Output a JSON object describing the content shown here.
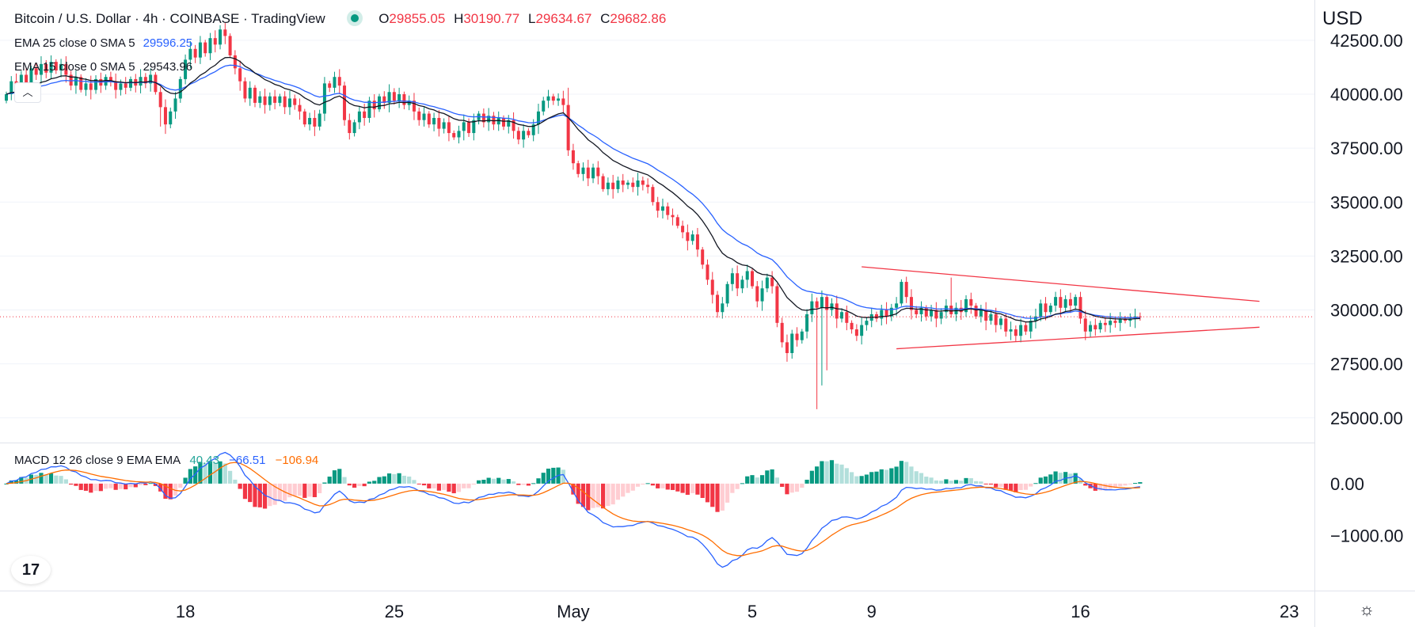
{
  "header": {
    "title": "Bitcoin / U.S. Dollar · 4h · COINBASE · TradingView",
    "o_key": "O",
    "o_val": "29855.05",
    "h_key": "H",
    "h_val": "30190.77",
    "l_key": "L",
    "l_val": "29634.67",
    "c_key": "C",
    "c_val": "29682.86"
  },
  "studies": {
    "ema25_label": "EMA 25 close 0 SMA 5",
    "ema25_value": "29596.25",
    "ema15_label": "EMA 15 close 0 SMA 5",
    "ema15_value": "29543.96"
  },
  "macd_legend": {
    "label": "MACD 12 26 close 9 EMA EMA",
    "hist": "40.43",
    "macd": "−66.51",
    "signal": "−106.94"
  },
  "currency": "USD",
  "logo_text": "17",
  "colors": {
    "up": "#089981",
    "down": "#f23645",
    "up_light": "#b2dfdb",
    "down_light": "#ffcdd2",
    "ema25": "#2962ff",
    "ema15": "#131722",
    "macd": "#2962ff",
    "signal": "#ff6d00",
    "trend": "#f23645"
  },
  "chart_data": [
    {
      "type": "candlestick",
      "title": "Bitcoin / U.S. Dollar · 4h · COINBASE",
      "ylabel": "USD",
      "ylim": [
        24000,
        44000
      ],
      "y_ticks": [
        25000,
        27500,
        30000,
        32500,
        35000,
        37500,
        40000,
        42500
      ],
      "y_tick_labels": [
        "25000.00",
        "27500.00",
        "30000.00",
        "32500.00",
        "35000.00",
        "37500.00",
        "40000.00",
        "42500.00"
      ],
      "x_ticks": [
        "18",
        "25",
        "May",
        "5",
        "9",
        "16",
        "23"
      ],
      "x_tick_bars": [
        36,
        78,
        114,
        150,
        174,
        216,
        258
      ],
      "close": [
        40000,
        40600,
        40300,
        40900,
        40500,
        41200,
        40900,
        41400,
        41000,
        41500,
        41100,
        41400,
        40900,
        40400,
        40800,
        40200,
        40500,
        40200,
        40700,
        40400,
        40800,
        40600,
        40200,
        40500,
        40300,
        40700,
        40400,
        40800,
        40500,
        40900,
        40100,
        39400,
        38600,
        39200,
        39800,
        40700,
        41600,
        42100,
        41700,
        42400,
        41900,
        42600,
        42300,
        43000,
        42700,
        41800,
        41200,
        40600,
        39800,
        40300,
        39600,
        39900,
        39500,
        39900,
        39600,
        39900,
        39400,
        39800,
        39500,
        39200,
        38600,
        38900,
        38500,
        39100,
        40500,
        40300,
        40800,
        40400,
        38800,
        38200,
        38700,
        39200,
        38900,
        39700,
        39300,
        39900,
        39600,
        40100,
        39700,
        40000,
        39500,
        39700,
        39200,
        38800,
        39100,
        38600,
        38900,
        38400,
        38700,
        38200,
        38000,
        38300,
        38700,
        38200,
        38800,
        39100,
        38700,
        39000,
        38600,
        38900,
        38500,
        38800,
        38300,
        37900,
        38300,
        38100,
        38600,
        39200,
        39700,
        39900,
        39700,
        39800,
        39500,
        37400,
        36800,
        36300,
        36600,
        36100,
        36600,
        36200,
        35600,
        35900,
        35600,
        36000,
        35800,
        35900,
        35700,
        36000,
        35800,
        35700,
        35000,
        34600,
        34800,
        34400,
        34300,
        33900,
        33600,
        33200,
        33500,
        32800,
        32100,
        31400,
        30700,
        29900,
        30300,
        31200,
        31700,
        31000,
        31400,
        31800,
        31100,
        30400,
        31000,
        31500,
        31100,
        29400,
        28500,
        28000,
        28900,
        28600,
        29000,
        29800,
        30400,
        30100,
        30600,
        30000,
        30300,
        29600,
        29900,
        29400,
        29100,
        28800,
        29300,
        29500,
        29800,
        29600,
        30000,
        29700,
        30100,
        30300,
        31300,
        30600,
        30000,
        29800,
        30100,
        29700,
        30000,
        29600,
        29900,
        30200,
        29800,
        30100,
        29900,
        30500,
        30200,
        29700,
        30000,
        29500,
        29800,
        29300,
        29600,
        29000,
        29100,
        28800,
        29300,
        29000,
        29500,
        29700,
        30300,
        29900,
        30200,
        30600,
        30100,
        30500,
        30200,
        30600,
        29600,
        29000,
        29300,
        29100,
        29400,
        29300,
        29500,
        29400,
        29600,
        29500,
        29600,
        29700,
        29680
      ],
      "series": [
        {
          "name": "EMA 25 close",
          "value": 29596.25
        },
        {
          "name": "EMA 15 close",
          "value": 29543.96
        }
      ],
      "annotations": {
        "last_price": 29682.86,
        "trendline_upper": [
          {
            "bar": 172,
            "price": 32000
          },
          {
            "bar": 252,
            "price": 30400
          }
        ],
        "trendline_lower": [
          {
            "bar": 179,
            "price": 28200
          },
          {
            "bar": 252,
            "price": 29200
          }
        ]
      }
    },
    {
      "type": "macd",
      "title": "MACD 12 26 close 9 EMA EMA",
      "ylim": [
        -2000,
        700
      ],
      "y_ticks": [
        0,
        -1000
      ],
      "y_tick_labels": [
        "0.00",
        "−1000.00"
      ],
      "series": [
        {
          "name": "Histogram",
          "value": 40.43
        },
        {
          "name": "MACD",
          "value": -66.51
        },
        {
          "name": "Signal",
          "value": -106.94
        }
      ]
    }
  ]
}
